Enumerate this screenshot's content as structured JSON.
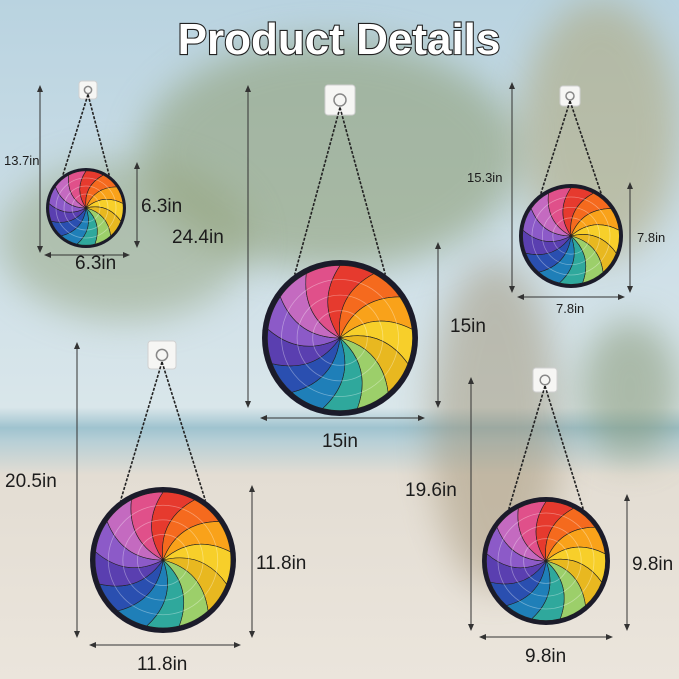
{
  "title": "Product Details",
  "products": [
    {
      "height": "13.7in",
      "diameter_v": "6.3in",
      "diameter_h": "6.3in"
    },
    {
      "height": "24.4in",
      "diameter_v": "15in",
      "diameter_h": "15in"
    },
    {
      "height": "15.3in",
      "diameter_v": "7.8in",
      "diameter_h": "7.8in"
    },
    {
      "height": "20.5in",
      "diameter_v": "11.8in",
      "diameter_h": "11.8in"
    },
    {
      "height": "19.6in",
      "diameter_v": "9.8in",
      "diameter_h": "9.8in"
    }
  ]
}
